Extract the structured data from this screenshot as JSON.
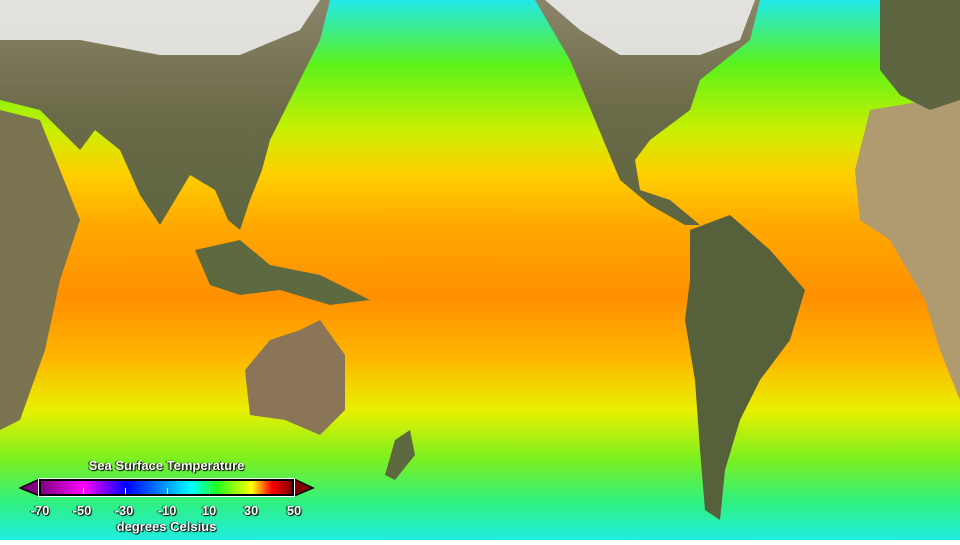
{
  "legend": {
    "title": "Sea Surface Temperature",
    "unit": "degrees Celsius",
    "ticks": [
      "-70",
      "-50",
      "-30",
      "-10",
      "10",
      "30",
      "50"
    ],
    "range": [
      -70,
      50
    ],
    "colors": [
      "#800080",
      "#ff00ff",
      "#0000ff",
      "#00ffff",
      "#20ff20",
      "#ffff00",
      "#ff0000",
      "#800000"
    ]
  }
}
